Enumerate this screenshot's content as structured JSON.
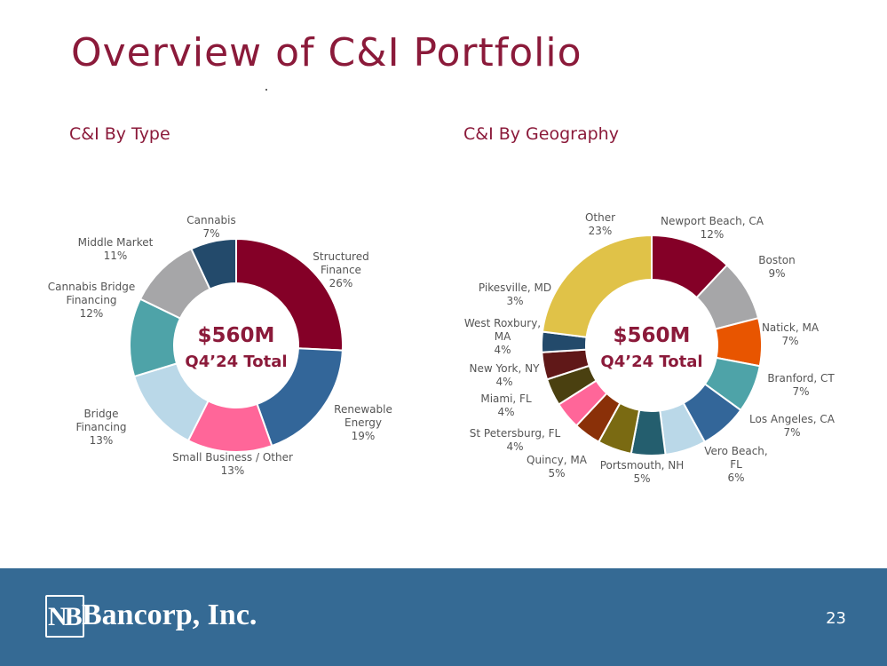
{
  "slide": {
    "title": "Overview of C&I Portfolio",
    "page_number": "23",
    "logo_mark": "NB",
    "logo_text": "Bancorp, Inc."
  },
  "colors": {
    "title": "#8b1a3a",
    "footer": "#356a94"
  },
  "chart_data": [
    {
      "type": "pie",
      "title": "C&I By Type",
      "center_value": "$560M",
      "center_label": "Q4’24 Total",
      "slices": [
        {
          "label": [
            "Structured",
            "Finance"
          ],
          "value": 26,
          "pct": "26%",
          "color": "#840027"
        },
        {
          "label": [
            "Renewable",
            "Energy"
          ],
          "value": 19,
          "pct": "19%",
          "color": "#336699"
        },
        {
          "label": [
            "Small Business / Other"
          ],
          "value": 13,
          "pct": "13%",
          "color": "#ff6699"
        },
        {
          "label": [
            "Bridge",
            "Financing"
          ],
          "value": 13,
          "pct": "13%",
          "color": "#bad8e8"
        },
        {
          "label": [
            "Cannabis Bridge",
            "Financing"
          ],
          "value": 12,
          "pct": "12%",
          "color": "#4ea3a8"
        },
        {
          "label": [
            "Middle Market"
          ],
          "value": 11,
          "pct": "11%",
          "color": "#a6a6a8"
        },
        {
          "label": [
            "Cannabis"
          ],
          "value": 7,
          "pct": "7%",
          "color": "#234a6b"
        }
      ]
    },
    {
      "type": "pie",
      "title": "C&I By Geography",
      "center_value": "$560M",
      "center_label": "Q4’24 Total",
      "slices": [
        {
          "label": [
            "Newport Beach, CA"
          ],
          "value": 12,
          "pct": "12%",
          "color": "#840027"
        },
        {
          "label": [
            "Boston"
          ],
          "value": 9,
          "pct": "9%",
          "color": "#a6a6a8"
        },
        {
          "label": [
            "Natick, MA"
          ],
          "value": 7,
          "pct": "7%",
          "color": "#e85500"
        },
        {
          "label": [
            "Branford, CT"
          ],
          "value": 7,
          "pct": "7%",
          "color": "#4ea3a8"
        },
        {
          "label": [
            "Los Angeles, CA"
          ],
          "value": 7,
          "pct": "7%",
          "color": "#336699"
        },
        {
          "label": [
            "Vero Beach,",
            "FL"
          ],
          "value": 6,
          "pct": "6%",
          "color": "#bad8e8"
        },
        {
          "label": [
            "Portsmouth, NH"
          ],
          "value": 5,
          "pct": "5%",
          "color": "#245e6e"
        },
        {
          "label": [
            "Quincy, MA"
          ],
          "value": 5,
          "pct": "5%",
          "color": "#7a6a12"
        },
        {
          "label": [
            "St Petersburg, FL"
          ],
          "value": 4,
          "pct": "4%",
          "color": "#8a3008"
        },
        {
          "label": [
            "Miami, FL"
          ],
          "value": 4,
          "pct": "4%",
          "color": "#ff6699"
        },
        {
          "label": [
            "New York, NY"
          ],
          "value": 4,
          "pct": "4%",
          "color": "#4a4010"
        },
        {
          "label": [
            "West Roxbury,",
            "MA"
          ],
          "value": 4,
          "pct": "4%",
          "color": "#601818"
        },
        {
          "label": [
            "Pikesville, MD"
          ],
          "value": 3,
          "pct": "3%",
          "color": "#234a6b"
        },
        {
          "label": [
            "Other"
          ],
          "value": 23,
          "pct": "23%",
          "color": "#e0c248"
        }
      ]
    }
  ]
}
